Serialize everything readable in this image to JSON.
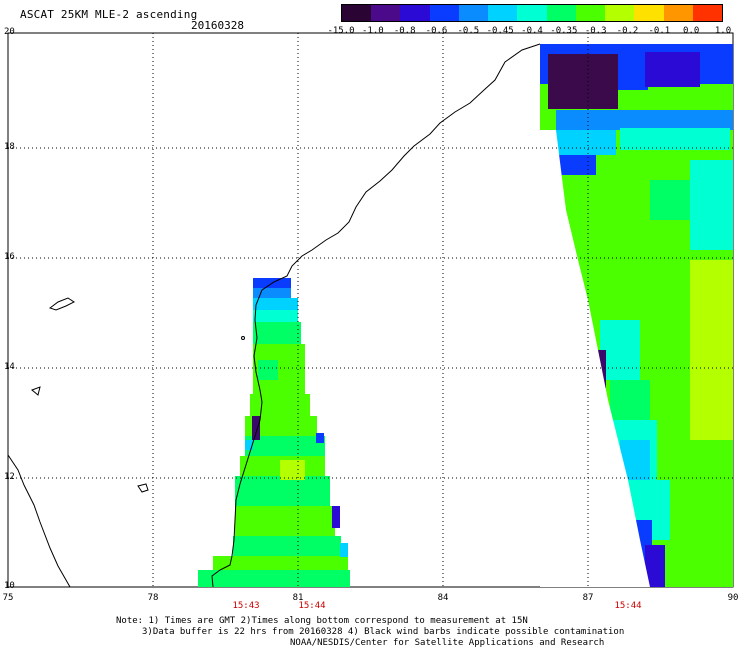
{
  "title": "ASCAT 25KM MLE-2 ascending",
  "date": "20160328",
  "colorbar": {
    "labels": [
      "-15.0",
      "-1.0",
      "-0.8",
      "-0.6",
      "-0.5",
      "-0.45",
      "-0.4",
      "-0.35",
      "-0.3",
      "-0.2",
      "-0.1",
      "0.0",
      "1.0"
    ],
    "colors": [
      "#2a0533",
      "#4b0a8a",
      "#2a0ad4",
      "#0a3cff",
      "#0a8cff",
      "#00d2ff",
      "#00ffd2",
      "#00ff64",
      "#4bff00",
      "#b4ff00",
      "#ffe100",
      "#ff9600",
      "#ff3200"
    ]
  },
  "axes": {
    "lat_labels": [
      "20",
      "18",
      "16",
      "14",
      "12",
      "10"
    ],
    "lon_labels": [
      "75",
      "78",
      "81",
      "84",
      "87",
      "90"
    ]
  },
  "pass_times": [
    "15:43",
    "15:44",
    "15:44"
  ],
  "notes": {
    "line1": "Note: 1) Times are GMT 2)Times along bottom correspond to measurement at 15N",
    "line2": "3)Data buffer is 22 hrs from 20160328 4) Black wind barbs indicate possible contamination",
    "line3": "NOAA/NESDIS/Center for Satellite Applications and Research"
  }
}
